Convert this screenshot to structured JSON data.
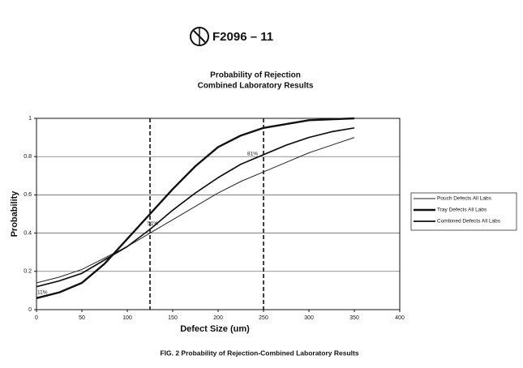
{
  "header": {
    "designation": "F2096 – 11"
  },
  "chart_data": {
    "type": "line",
    "title": "Probability of Rejection",
    "subtitle": "Combined Laboratory Results",
    "x_label": "Defect Size (um)",
    "y_label": "Probability",
    "caption": "FIG. 2 Probability of Rejection-Combined Laboratory Results",
    "x": [
      0,
      25,
      50,
      75,
      100,
      125,
      150,
      175,
      200,
      225,
      250,
      275,
      300,
      325,
      350
    ],
    "series": [
      {
        "name": "Pouch Defects All Labs",
        "color": "#222222",
        "width": 1,
        "values": [
          0.14,
          0.17,
          0.21,
          0.27,
          0.33,
          0.4,
          0.47,
          0.54,
          0.61,
          0.67,
          0.72,
          0.77,
          0.82,
          0.86,
          0.9
        ]
      },
      {
        "name": "Tray Defects All Labs",
        "color": "#111111",
        "width": 2.4,
        "values": [
          0.06,
          0.09,
          0.14,
          0.24,
          0.37,
          0.5,
          0.63,
          0.75,
          0.85,
          0.91,
          0.95,
          0.97,
          0.99,
          0.995,
          1.0
        ]
      },
      {
        "name": "Combined Defects All Labs",
        "color": "#111111",
        "width": 1.7,
        "values": [
          0.12,
          0.15,
          0.19,
          0.26,
          0.33,
          0.42,
          0.52,
          0.61,
          0.69,
          0.76,
          0.81,
          0.86,
          0.9,
          0.93,
          0.95
        ]
      }
    ],
    "reference_lines_x": [
      125,
      250
    ],
    "annotations": [
      "11%",
      "51%",
      "81%"
    ],
    "xlim": [
      0,
      400
    ],
    "xticks": [
      0,
      50,
      100,
      150,
      200,
      250,
      300,
      350,
      400
    ],
    "ylim": [
      0,
      1
    ],
    "yticks": [
      0,
      0.2,
      0.4,
      0.6,
      0.8,
      1
    ],
    "grid": true
  }
}
